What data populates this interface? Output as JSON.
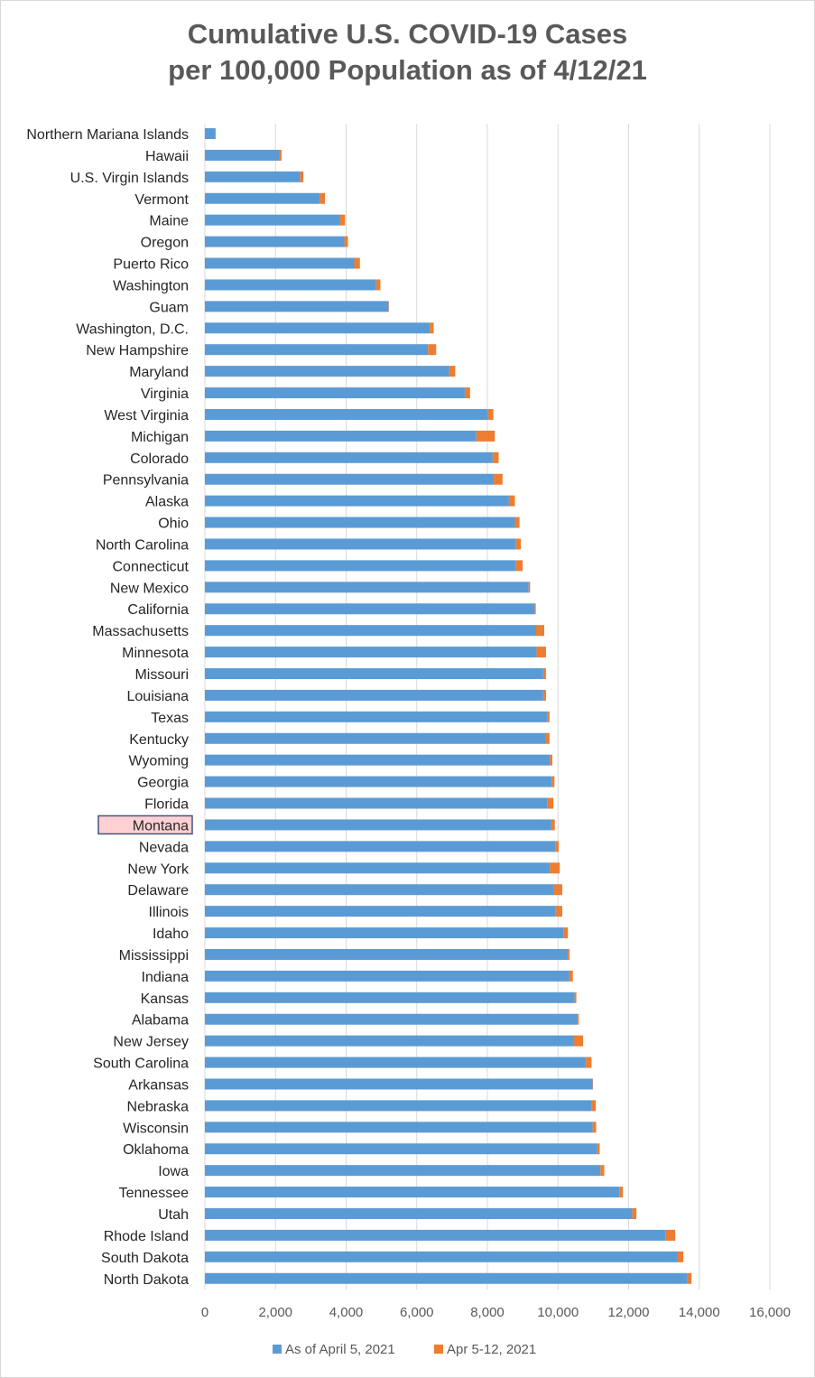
{
  "chart_data": {
    "type": "bar",
    "orientation": "horizontal",
    "stacked": true,
    "title_line1": "Cumulative U.S. COVID-19 Cases",
    "title_line2": "per 100,000 Population as of 4/12/21",
    "xlim": [
      0,
      16000
    ],
    "x_ticks": [
      0,
      2000,
      4000,
      6000,
      8000,
      10000,
      12000,
      14000,
      16000
    ],
    "x_tick_labels": [
      "0",
      "2,000",
      "4,000",
      "6,000",
      "8,000",
      "10,000",
      "12,000",
      "14,000",
      "16,000"
    ],
    "grid": "vertical major gridlines",
    "legend_position": "bottom",
    "highlighted_category": "Montana",
    "categories": [
      "Northern Mariana Islands",
      "Hawaii",
      "U.S. Virgin Islands",
      "Vermont",
      "Maine",
      "Oregon",
      "Puerto Rico",
      "Washington",
      "Guam",
      "Washington, D.C.",
      "New Hampshire",
      "Maryland",
      "Virginia",
      "West Virginia",
      "Michigan",
      "Colorado",
      "Pennsylvania",
      "Alaska",
      "Ohio",
      "North Carolina",
      "Connecticut",
      "New Mexico",
      "California",
      "Massachusetts",
      "Minnesota",
      "Missouri",
      "Louisiana",
      "Texas",
      "Kentucky",
      "Wyoming",
      "Georgia",
      "Florida",
      "Montana",
      "Nevada",
      "New York",
      "Delaware",
      "Illinois",
      "Idaho",
      "Mississippi",
      "Indiana",
      "Kansas",
      "Alabama",
      "New Jersey",
      "South Carolina",
      "Arkansas",
      "Nebraska",
      "Wisconsin",
      "Oklahoma",
      "Iowa",
      "Tennessee",
      "Utah",
      "Rhode Island",
      "South Dakota",
      "North Dakota"
    ],
    "series": [
      {
        "name": "As of April 5, 2021",
        "color": "#5b9bd5",
        "values": [
          300,
          2120,
          2700,
          3250,
          3820,
          3950,
          4230,
          4850,
          5200,
          6370,
          6320,
          6920,
          7360,
          8010,
          7690,
          8150,
          8180,
          8610,
          8780,
          8810,
          8810,
          9170,
          9340,
          9380,
          9390,
          9580,
          9580,
          9690,
          9660,
          9770,
          9820,
          9690,
          9810,
          9920,
          9770,
          9880,
          9920,
          10150,
          10280,
          10320,
          10470,
          10560,
          10440,
          10790,
          10980,
          10960,
          10980,
          11110,
          11200,
          11740,
          12100,
          13040,
          13380,
          13650
        ]
      },
      {
        "name": "Apr 5-12, 2021",
        "color": "#ed7d31",
        "values": [
          10,
          50,
          90,
          150,
          150,
          100,
          160,
          120,
          10,
          110,
          230,
          170,
          150,
          160,
          520,
          170,
          250,
          170,
          130,
          140,
          190,
          40,
          30,
          230,
          270,
          80,
          80,
          70,
          100,
          70,
          80,
          180,
          100,
          100,
          280,
          240,
          200,
          130,
          50,
          100,
          50,
          30,
          270,
          160,
          10,
          110,
          100,
          70,
          110,
          100,
          120,
          280,
          170,
          130
        ]
      }
    ]
  }
}
